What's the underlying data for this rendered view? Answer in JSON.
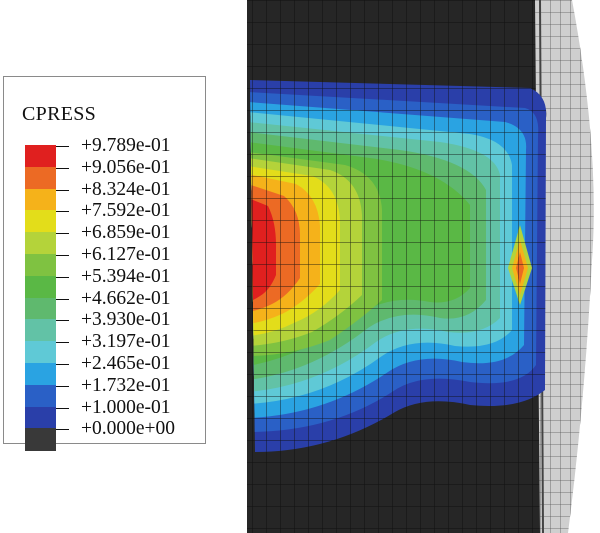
{
  "legend": {
    "title": "CPRESS",
    "labels": [
      "+9.789e-01",
      "+9.056e-01",
      "+8.324e-01",
      "+7.592e-01",
      "+6.859e-01",
      "+6.127e-01",
      "+5.394e-01",
      "+4.662e-01",
      "+3.930e-01",
      "+3.197e-01",
      "+2.465e-01",
      "+1.732e-01",
      "+1.000e-01",
      "+0.000e+00"
    ],
    "colors": [
      "#e0201f",
      "#ec6a24",
      "#f5b21a",
      "#e3dd1a",
      "#b4d33a",
      "#7fc241",
      "#5ab845",
      "#5fb96e",
      "#62c2a6",
      "#5fc9d6",
      "#2aa3e2",
      "#2a60c6",
      "#2a3fa9",
      "#393939"
    ]
  },
  "colors": {
    "background_body": "#1f1f1f",
    "mesh_line": "#0d0d0d",
    "ring_fill": "#d4d4d4"
  }
}
